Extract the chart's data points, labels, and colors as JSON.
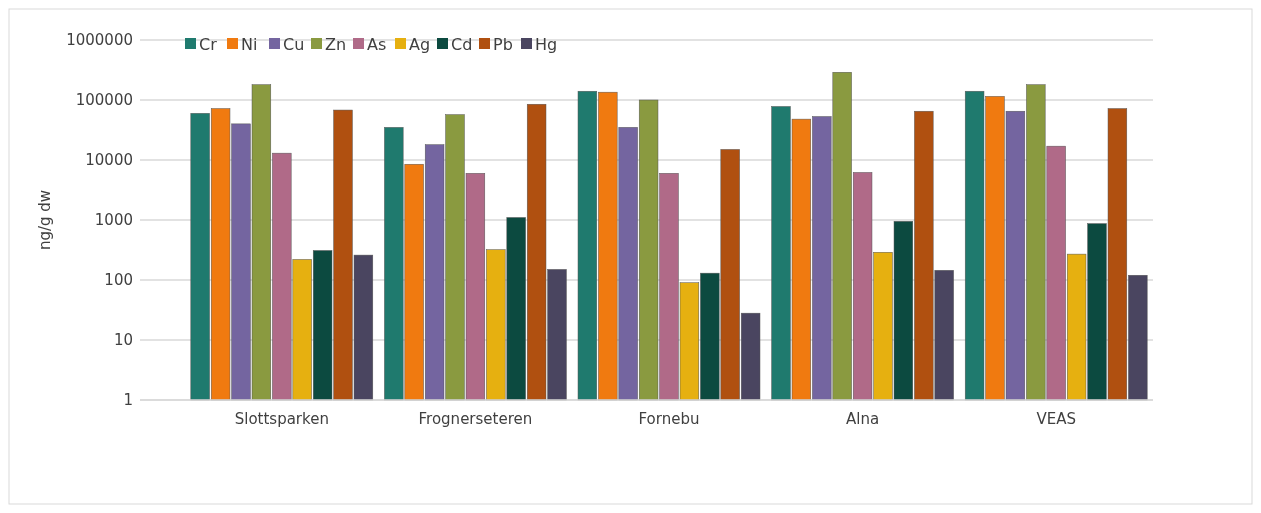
{
  "chart_data": {
    "type": "bar",
    "ylabel": "ng/g dw",
    "categories": [
      "Slottsparken",
      "Frognerseteren",
      "Fornebu",
      "Alna",
      "VEAS"
    ],
    "log": true,
    "ylim": [
      1,
      1000000
    ],
    "yticks": [
      1,
      10,
      100,
      1000,
      10000,
      100000,
      1000000
    ],
    "grid": "y",
    "legend": "top left",
    "series": [
      {
        "name": "Cr",
        "color": "#1f7a6e",
        "values": [
          60000,
          35000,
          140000,
          78000,
          140000
        ]
      },
      {
        "name": "Ni",
        "color": "#f07a10",
        "values": [
          72000,
          8500,
          135000,
          48000,
          115000
        ]
      },
      {
        "name": "Cu",
        "color": "#7465a0",
        "values": [
          40000,
          18000,
          35000,
          53000,
          65000
        ]
      },
      {
        "name": "Zn",
        "color": "#8a9a40",
        "values": [
          180000,
          57000,
          100000,
          290000,
          180000
        ]
      },
      {
        "name": "As",
        "color": "#b06a88",
        "values": [
          13000,
          6000,
          6000,
          6200,
          17000
        ]
      },
      {
        "name": "Ag",
        "color": "#e6b010",
        "values": [
          220,
          320,
          90,
          290,
          270
        ]
      },
      {
        "name": "Cd",
        "color": "#0c4a40",
        "values": [
          310,
          1100,
          130,
          950,
          870
        ]
      },
      {
        "name": "Pb",
        "color": "#b05010",
        "values": [
          68000,
          85000,
          15000,
          65000,
          72000
        ]
      },
      {
        "name": "Hg",
        "color": "#4a4560",
        "values": [
          260,
          150,
          28,
          145,
          120
        ]
      }
    ]
  }
}
